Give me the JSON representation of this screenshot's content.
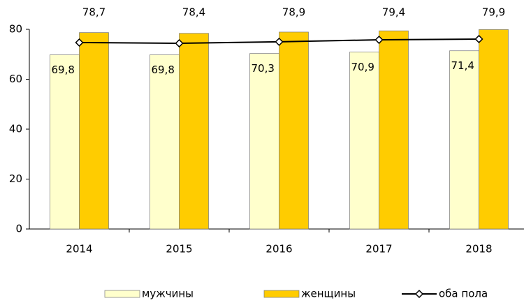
{
  "chart_data": {
    "type": "bar",
    "categories": [
      "2014",
      "2015",
      "2016",
      "2017",
      "2018"
    ],
    "series": [
      {
        "name": "мужчины",
        "color": "#ffffcc",
        "values": [
          69.8,
          69.8,
          70.3,
          70.9,
          71.4
        ],
        "value_labels": [
          "69,8",
          "69,8",
          "70,3",
          "70,9",
          "71,4"
        ]
      },
      {
        "name": "женщины",
        "color": "#ffcc00",
        "values": [
          78.7,
          78.4,
          78.9,
          79.4,
          79.9
        ],
        "value_labels": [
          "78,7",
          "78,4",
          "78,9",
          "79,4",
          "79,9"
        ]
      },
      {
        "name": "оба пола",
        "type": "line",
        "color": "#000000",
        "values": [
          74.7,
          74.4,
          75.0,
          75.8,
          76.1
        ]
      }
    ],
    "ylim": [
      0,
      80
    ],
    "yticks": [
      0,
      20,
      40,
      60,
      80
    ],
    "legend": "bottom"
  }
}
